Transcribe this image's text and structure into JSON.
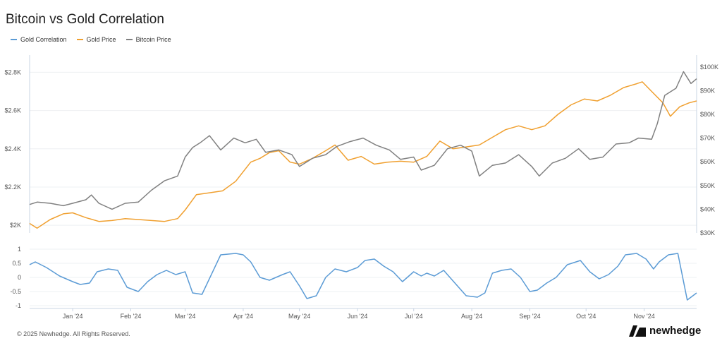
{
  "title": "Bitcoin vs Gold Correlation",
  "legend": [
    {
      "label": "Gold Correlation",
      "color": "#5b9bd5"
    },
    {
      "label": "Gold Price",
      "color": "#f0a030"
    },
    {
      "label": "Bitcoin Price",
      "color": "#808080"
    }
  ],
  "footer": {
    "copyright": "© 2025 Newhedge. All Rights Reserved.",
    "brand": "newhedge"
  },
  "chart_data": [
    {
      "type": "line",
      "x_ticks": [
        "Jan '24",
        "Feb '24",
        "Mar '24",
        "Apr '24",
        "May '24",
        "Jun '24",
        "Jul '24",
        "Aug '24",
        "Sep '24",
        "Oct '24",
        "Nov '24"
      ],
      "y_left": {
        "ticks": [
          "$2K",
          "$2.2K",
          "$2.4K",
          "$2.6K",
          "$2.8K"
        ],
        "tick_values": [
          2000,
          2200,
          2400,
          2600,
          2800
        ],
        "range": [
          1960,
          2890
        ]
      },
      "y_right": {
        "ticks": [
          "$30K",
          "$40K",
          "$50K",
          "$60K",
          "$70K",
          "$80K",
          "$90K",
          "$100K"
        ],
        "tick_values": [
          30000,
          40000,
          50000,
          60000,
          70000,
          80000,
          90000,
          100000
        ],
        "range": [
          30000,
          105000
        ]
      },
      "series": [
        {
          "name": "Gold Price",
          "axis": "left",
          "color": "#f0a030",
          "x": [
            "2023-12-09",
            "2023-12-13",
            "2023-12-20",
            "2023-12-27",
            "2024-01-01",
            "2024-01-08",
            "2024-01-15",
            "2024-01-22",
            "2024-01-29",
            "2024-02-05",
            "2024-02-12",
            "2024-02-19",
            "2024-02-26",
            "2024-03-01",
            "2024-03-07",
            "2024-03-14",
            "2024-03-21",
            "2024-03-28",
            "2024-04-05",
            "2024-04-10",
            "2024-04-15",
            "2024-04-20",
            "2024-04-26",
            "2024-05-01",
            "2024-05-08",
            "2024-05-15",
            "2024-05-20",
            "2024-05-27",
            "2024-06-03",
            "2024-06-10",
            "2024-06-17",
            "2024-06-24",
            "2024-07-01",
            "2024-07-08",
            "2024-07-15",
            "2024-07-22",
            "2024-07-29",
            "2024-08-05",
            "2024-08-12",
            "2024-08-19",
            "2024-08-26",
            "2024-09-02",
            "2024-09-09",
            "2024-09-16",
            "2024-09-23",
            "2024-09-30",
            "2024-10-07",
            "2024-10-14",
            "2024-10-21",
            "2024-10-28",
            "2024-10-31",
            "2024-11-05",
            "2024-11-11",
            "2024-11-15",
            "2024-11-20",
            "2024-11-25",
            "2024-11-29"
          ],
          "y": [
            2010,
            1985,
            2030,
            2060,
            2065,
            2040,
            2020,
            2025,
            2035,
            2030,
            2025,
            2020,
            2035,
            2080,
            2160,
            2170,
            2180,
            2230,
            2330,
            2350,
            2380,
            2390,
            2330,
            2320,
            2350,
            2390,
            2420,
            2340,
            2360,
            2320,
            2330,
            2335,
            2330,
            2360,
            2440,
            2400,
            2410,
            2420,
            2460,
            2500,
            2520,
            2500,
            2520,
            2580,
            2630,
            2660,
            2650,
            2680,
            2720,
            2740,
            2750,
            2700,
            2640,
            2570,
            2620,
            2640,
            2650
          ]
        },
        {
          "name": "Bitcoin Price",
          "axis": "right",
          "color": "#808080",
          "x": [
            "2023-12-09",
            "2023-12-13",
            "2023-12-20",
            "2023-12-27",
            "2024-01-01",
            "2024-01-08",
            "2024-01-11",
            "2024-01-15",
            "2024-01-22",
            "2024-01-29",
            "2024-02-05",
            "2024-02-12",
            "2024-02-19",
            "2024-02-26",
            "2024-03-01",
            "2024-03-05",
            "2024-03-09",
            "2024-03-14",
            "2024-03-20",
            "2024-03-27",
            "2024-04-02",
            "2024-04-08",
            "2024-04-13",
            "2024-04-20",
            "2024-04-27",
            "2024-05-01",
            "2024-05-08",
            "2024-05-15",
            "2024-05-21",
            "2024-05-28",
            "2024-06-04",
            "2024-06-11",
            "2024-06-18",
            "2024-06-24",
            "2024-07-01",
            "2024-07-05",
            "2024-07-12",
            "2024-07-19",
            "2024-07-26",
            "2024-08-01",
            "2024-08-05",
            "2024-08-12",
            "2024-08-19",
            "2024-08-26",
            "2024-09-02",
            "2024-09-06",
            "2024-09-13",
            "2024-09-20",
            "2024-09-27",
            "2024-10-03",
            "2024-10-10",
            "2024-10-17",
            "2024-10-24",
            "2024-10-29",
            "2024-11-05",
            "2024-11-08",
            "2024-11-12",
            "2024-11-18",
            "2024-11-22",
            "2024-11-26",
            "2024-11-29"
          ],
          "y": [
            42000,
            43000,
            42500,
            41500,
            42500,
            44000,
            46000,
            42500,
            40000,
            42500,
            43000,
            48000,
            52000,
            54000,
            62000,
            66000,
            68000,
            71000,
            65000,
            70000,
            68000,
            69500,
            64000,
            65000,
            63000,
            58000,
            61500,
            63000,
            66500,
            68500,
            70000,
            67000,
            65000,
            61000,
            62000,
            56500,
            58500,
            65500,
            67000,
            64500,
            54000,
            58500,
            59500,
            63000,
            58000,
            54000,
            59500,
            61500,
            65500,
            61000,
            62000,
            67500,
            68000,
            70000,
            69500,
            76000,
            88000,
            91000,
            98000,
            93000,
            95000
          ]
        },
        {
          "name": "Gold Correlation",
          "axis": "corr",
          "color": "#5b9bd5",
          "x": [
            "2023-12-09",
            "2023-12-12",
            "2023-12-18",
            "2023-12-25",
            "2024-01-01",
            "2024-01-05",
            "2024-01-10",
            "2024-01-14",
            "2024-01-20",
            "2024-01-25",
            "2024-01-30",
            "2024-02-05",
            "2024-02-10",
            "2024-02-15",
            "2024-02-20",
            "2024-02-25",
            "2024-03-01",
            "2024-03-05",
            "2024-03-10",
            "2024-03-20",
            "2024-03-28",
            "2024-04-01",
            "2024-04-05",
            "2024-04-10",
            "2024-04-15",
            "2024-04-22",
            "2024-04-26",
            "2024-05-01",
            "2024-05-05",
            "2024-05-10",
            "2024-05-15",
            "2024-05-20",
            "2024-05-26",
            "2024-06-01",
            "2024-06-05",
            "2024-06-10",
            "2024-06-15",
            "2024-06-20",
            "2024-06-25",
            "2024-07-01",
            "2024-07-05",
            "2024-07-08",
            "2024-07-12",
            "2024-07-17",
            "2024-07-23",
            "2024-07-29",
            "2024-08-04",
            "2024-08-08",
            "2024-08-12",
            "2024-08-17",
            "2024-08-22",
            "2024-08-27",
            "2024-09-01",
            "2024-09-05",
            "2024-09-10",
            "2024-09-15",
            "2024-09-21",
            "2024-09-28",
            "2024-10-03",
            "2024-10-08",
            "2024-10-13",
            "2024-10-18",
            "2024-10-22",
            "2024-10-28",
            "2024-11-02",
            "2024-11-06",
            "2024-11-09",
            "2024-11-14",
            "2024-11-19",
            "2024-11-24",
            "2024-11-29"
          ],
          "y": [
            0.45,
            0.55,
            0.35,
            0.05,
            -0.15,
            -0.25,
            -0.2,
            0.2,
            0.3,
            0.25,
            -0.35,
            -0.5,
            -0.15,
            0.1,
            0.25,
            0.1,
            0.2,
            -0.55,
            -0.6,
            0.8,
            0.85,
            0.8,
            0.55,
            0.0,
            -0.1,
            0.1,
            0.2,
            -0.3,
            -0.75,
            -0.65,
            0.0,
            0.3,
            0.2,
            0.35,
            0.6,
            0.65,
            0.4,
            0.2,
            -0.15,
            0.2,
            0.05,
            0.15,
            0.05,
            0.25,
            -0.2,
            -0.65,
            -0.7,
            -0.55,
            0.15,
            0.25,
            0.3,
            0.0,
            -0.5,
            -0.45,
            -0.2,
            0.0,
            0.45,
            0.6,
            0.2,
            -0.05,
            0.1,
            0.4,
            0.8,
            0.85,
            0.65,
            0.3,
            0.55,
            0.8,
            0.85,
            -0.8,
            -0.55
          ]
        }
      ]
    },
    {
      "type": "line",
      "subchart": "correlation",
      "y_ticks": [
        "1",
        "0.5",
        "0",
        "-0.5",
        "-1"
      ],
      "y_tick_values": [
        1,
        0.5,
        0,
        -0.5,
        -1
      ],
      "range": [
        -1.1,
        1.15
      ]
    }
  ]
}
